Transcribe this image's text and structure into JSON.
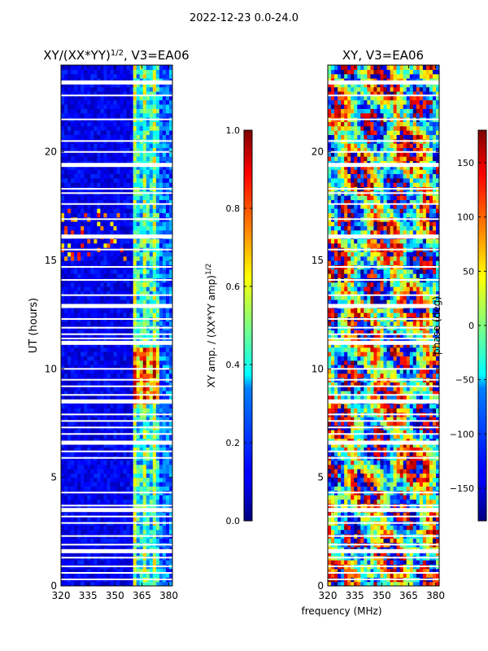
{
  "suptitle": "2022-12-23 0.0-24.0",
  "chart_data": [
    {
      "type": "heatmap",
      "title": "XY/(XX*YY)",
      "title_sup": "1/2",
      "title_suffix": ", V3=EA06",
      "xlabel": "",
      "ylabel": "UT (hours)",
      "x_ticks": [
        320,
        335,
        350,
        365,
        380
      ],
      "y_ticks": [
        0,
        5,
        10,
        15,
        20
      ],
      "xlim": [
        320,
        382
      ],
      "ylim": [
        0,
        24
      ],
      "colormap": "jet",
      "colorbar": {
        "label": "XY amp. / (XX*YY amp)",
        "label_sup": "1/2",
        "ticks": [
          "0.0",
          "0.2",
          "0.4",
          "0.6",
          "0.8",
          "1.0"
        ],
        "range": [
          0,
          1
        ]
      },
      "bright_band_mhz": [
        360,
        374
      ],
      "strong_signal_hours": [
        8.5,
        11.0
      ]
    },
    {
      "type": "heatmap",
      "title": "XY, V3=EA06",
      "xlabel": "frequency (MHz)",
      "ylabel": "",
      "x_ticks": [
        320,
        335,
        350,
        365,
        380
      ],
      "y_ticks": [
        0,
        5,
        10,
        15,
        20
      ],
      "xlim": [
        320,
        382
      ],
      "ylim": [
        0,
        24
      ],
      "colormap": "jet",
      "colorbar": {
        "label": "phase (deg)",
        "ticks": [
          "150",
          "100",
          "50",
          "0",
          "−50",
          "−100",
          "−150"
        ],
        "range": [
          -180,
          180
        ]
      }
    }
  ],
  "gap_hours": [
    23.2,
    22.6,
    21.5,
    20.5,
    20.0,
    19.4,
    18.3,
    18.1,
    17.6,
    16.9,
    16.1,
    15.5,
    14.7,
    14.1,
    13.4,
    12.9,
    12.3,
    11.9,
    11.6,
    11.4,
    11.2,
    10.0,
    9.5,
    9.2,
    8.8,
    8.5,
    7.9,
    7.6,
    7.3,
    7.0,
    6.6,
    6.2,
    5.9,
    4.3,
    3.7,
    3.5,
    3.2,
    2.9,
    2.3,
    1.9,
    1.6,
    1.3,
    0.9,
    0.6,
    0.3
  ]
}
